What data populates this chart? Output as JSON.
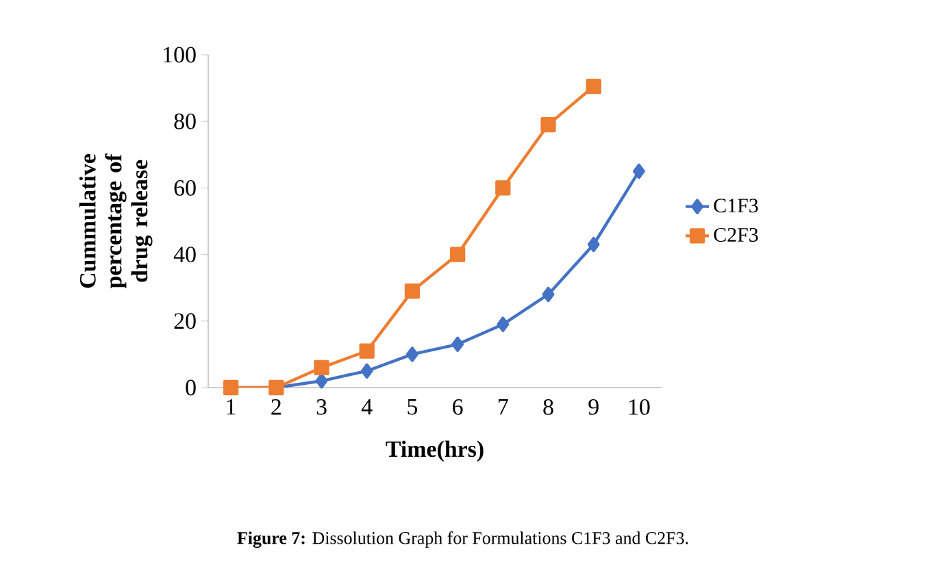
{
  "chart_data": {
    "type": "line",
    "xlabel": "Time(hrs)",
    "ylabel": "Cummulative percentage of drug release",
    "categories": [
      "1",
      "2",
      "3",
      "4",
      "5",
      "6",
      "7",
      "8",
      "9",
      "10"
    ],
    "series": [
      {
        "name": "C1F3",
        "color": "#4472c4",
        "marker": "diamond",
        "values": [
          0,
          0,
          2,
          5,
          10,
          13,
          19,
          28,
          43,
          65
        ]
      },
      {
        "name": "C2F3",
        "color": "#ed7d31",
        "marker": "square",
        "values": [
          0,
          0,
          6,
          11,
          29,
          40,
          60,
          79,
          90.5,
          null
        ]
      }
    ],
    "ylim": [
      0,
      100
    ],
    "yticks": [
      0,
      20,
      40,
      60,
      80,
      100
    ],
    "grid": false,
    "legend": "right",
    "line_style": "solid",
    "annotations": [
      "**Figure 7:** Dissolution Graph for Formulations C1F3 and C2F3."
    ]
  }
}
